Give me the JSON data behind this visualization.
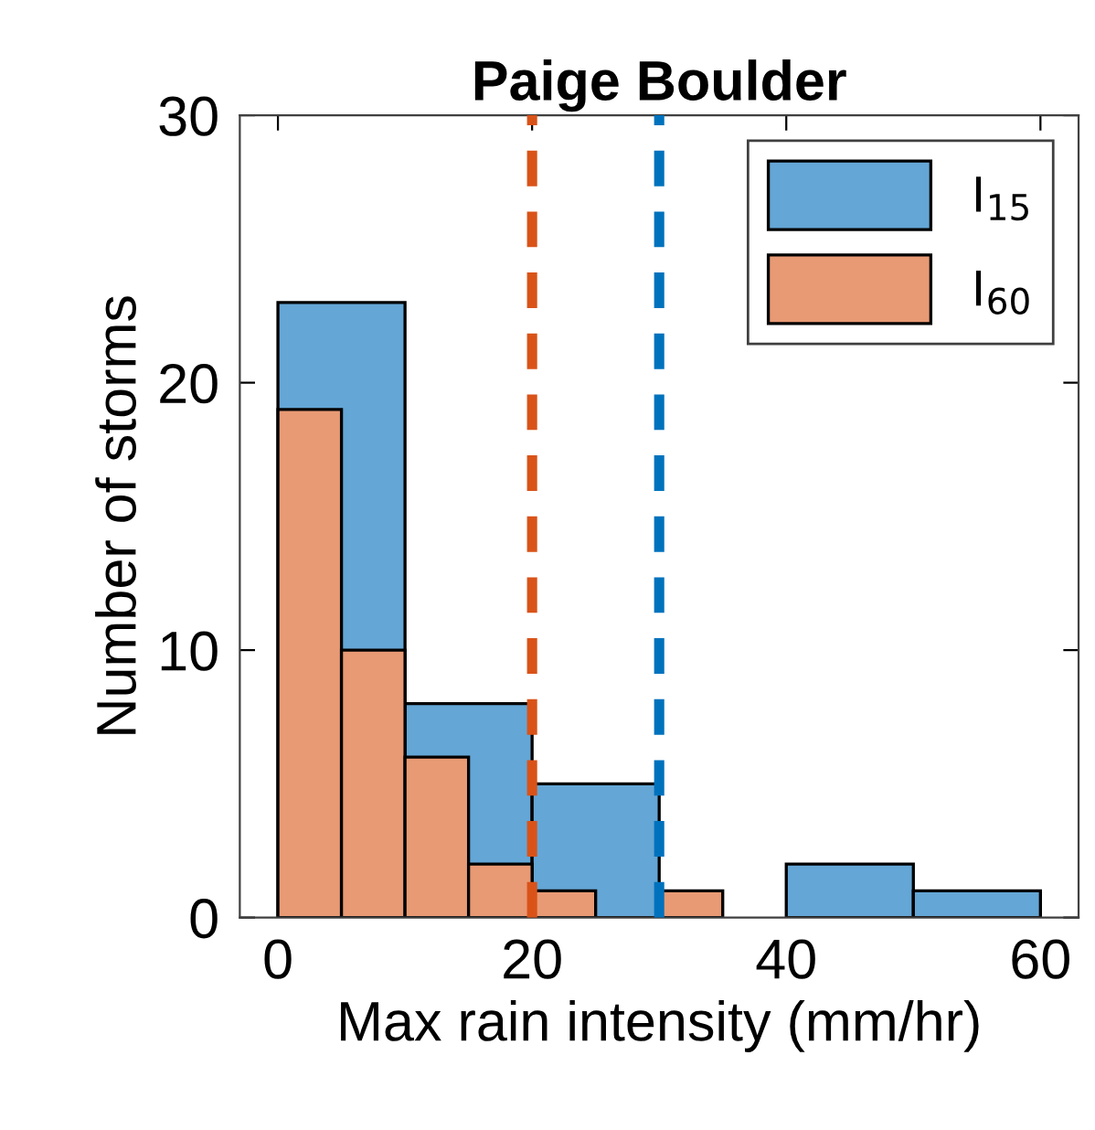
{
  "chart_data": {
    "type": "histogram",
    "title": "Paige Boulder",
    "xlabel": "Max rain intensity (mm/hr)",
    "ylabel": "Number of storms",
    "xlim": [
      -3,
      63
    ],
    "xticks": [
      0,
      20,
      40,
      60
    ],
    "ylim": [
      0,
      30
    ],
    "yticks": [
      0,
      10,
      20,
      30
    ],
    "bins": [
      0,
      10,
      20,
      30,
      40,
      50,
      60
    ],
    "series": [
      {
        "name": "I$_{15}$",
        "color": "#64a6d6",
        "values": [
          23,
          8,
          5,
          0,
          2,
          1
        ]
      },
      {
        "name": "I$_{60}$",
        "color": "#e89a74",
        "bins": [
          0,
          5,
          10,
          15,
          20,
          25,
          30,
          35
        ],
        "values": [
          19,
          10,
          6,
          2,
          1,
          0,
          1
        ]
      }
    ],
    "ref_lines": [
      {
        "axis": "x",
        "value": 20,
        "color": "#d95319",
        "line_style": "dashed"
      },
      {
        "axis": "x",
        "value": 30,
        "color": "#0072bd",
        "line_style": "dashed"
      }
    ],
    "legend": "top right",
    "grid": false
  }
}
